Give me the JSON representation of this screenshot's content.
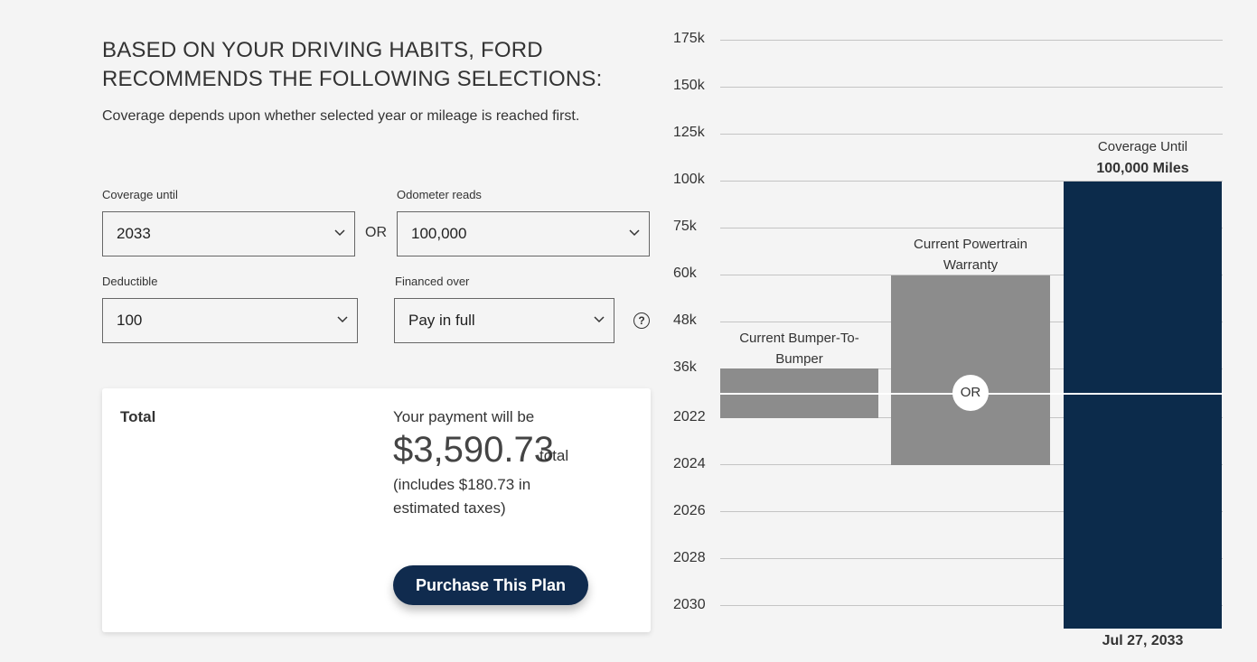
{
  "heading": "BASED ON YOUR DRIVING HABITS, FORD RECOMMENDS THE FOLLOWING SELECTIONS:",
  "subheading": "Coverage depends upon whether selected year or mileage is reached first.",
  "form": {
    "coverage_until": {
      "label": "Coverage until",
      "value": "2033"
    },
    "or": "OR",
    "odometer": {
      "label": "Odometer reads",
      "value": "100,000"
    },
    "deductible": {
      "label": "Deductible",
      "value": "100"
    },
    "financed": {
      "label": "Financed over",
      "value": "Pay in full"
    },
    "help": "?"
  },
  "total": {
    "label": "Total",
    "intro": "Your payment will be",
    "amount": "$3,590.73",
    "suffix": "total",
    "taxes": "(includes $180.73 in estimated taxes)",
    "button": "Purchase This Plan"
  },
  "chart": {
    "mileage_ticks": [
      "175k",
      "150k",
      "125k",
      "100k",
      "75k",
      "60k",
      "48k",
      "36k"
    ],
    "year_ticks": [
      "2022",
      "2024",
      "2026",
      "2028",
      "2030"
    ],
    "bars": [
      {
        "label": "Current Bumper-To-Bumper"
      },
      {
        "label": "Current Powertrain Warranty"
      },
      {
        "label": "Coverage Until",
        "value": "100,000 Miles",
        "end": "Jul 27, 2033"
      }
    ],
    "divider": "OR"
  }
}
